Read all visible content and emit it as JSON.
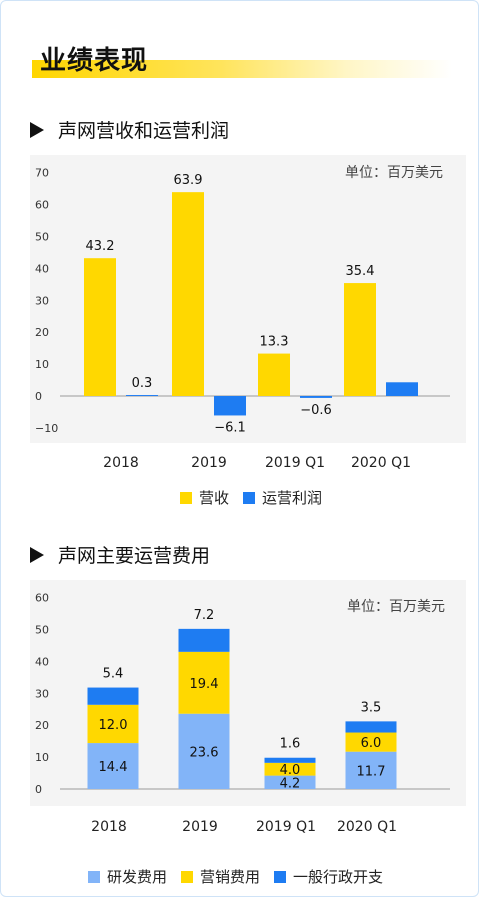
{
  "section_title": "业绩表现",
  "colors": {
    "yellow": "#ffd800",
    "blue": "#1e7cf2",
    "lightblue": "#82b4f8"
  },
  "chart1": {
    "heading": "声网营收和运营利润",
    "unit": "单位：百万美元",
    "legend": [
      "营收",
      "运营利润"
    ]
  },
  "chart2": {
    "heading": "声网主要运营费用",
    "unit": "单位：百万美元",
    "legend": [
      "研发费用",
      "营销费用",
      "一般行政开支"
    ]
  },
  "chart_data": [
    {
      "type": "bar",
      "title": "声网营收和运营利润",
      "categories": [
        "2018",
        "2019",
        "2019 Q1",
        "2020 Q1"
      ],
      "series": [
        {
          "name": "营收",
          "values": [
            43.2,
            63.9,
            13.3,
            35.4
          ],
          "labels": [
            "43.2",
            "63.9",
            "13.3",
            "35.4"
          ]
        },
        {
          "name": "运营利润",
          "values": [
            0.3,
            -6.1,
            -0.6,
            4.3
          ],
          "labels": [
            "0.3",
            "−6.1",
            "−0.6",
            ""
          ]
        }
      ],
      "yticks": [
        "70",
        "60",
        "50",
        "40",
        "30",
        "20",
        "10",
        "0",
        "−10"
      ],
      "ylim": [
        -10,
        70
      ],
      "unit": "单位：百万美元",
      "legend_position": "bottom"
    },
    {
      "type": "bar",
      "stacked": true,
      "title": "声网主要运营费用",
      "categories": [
        "2018",
        "2019",
        "2019 Q1",
        "2020 Q1"
      ],
      "series": [
        {
          "name": "研发费用",
          "values": [
            14.4,
            23.6,
            4.2,
            11.7
          ],
          "labels": [
            "14.4",
            "23.6",
            "4.2",
            "11.7"
          ]
        },
        {
          "name": "营销费用",
          "values": [
            12.0,
            19.4,
            4.0,
            6.0
          ],
          "labels": [
            "12.0",
            "19.4",
            "4.0",
            "6.0"
          ]
        },
        {
          "name": "一般行政开支",
          "values": [
            5.4,
            7.2,
            1.6,
            3.5
          ],
          "labels": [
            "5.4",
            "7.2",
            "1.6",
            "3.5"
          ]
        }
      ],
      "yticks": [
        "60",
        "50",
        "40",
        "30",
        "20",
        "10",
        "0"
      ],
      "ylim": [
        0,
        60
      ],
      "unit": "单位：百万美元",
      "legend_position": "bottom"
    }
  ]
}
